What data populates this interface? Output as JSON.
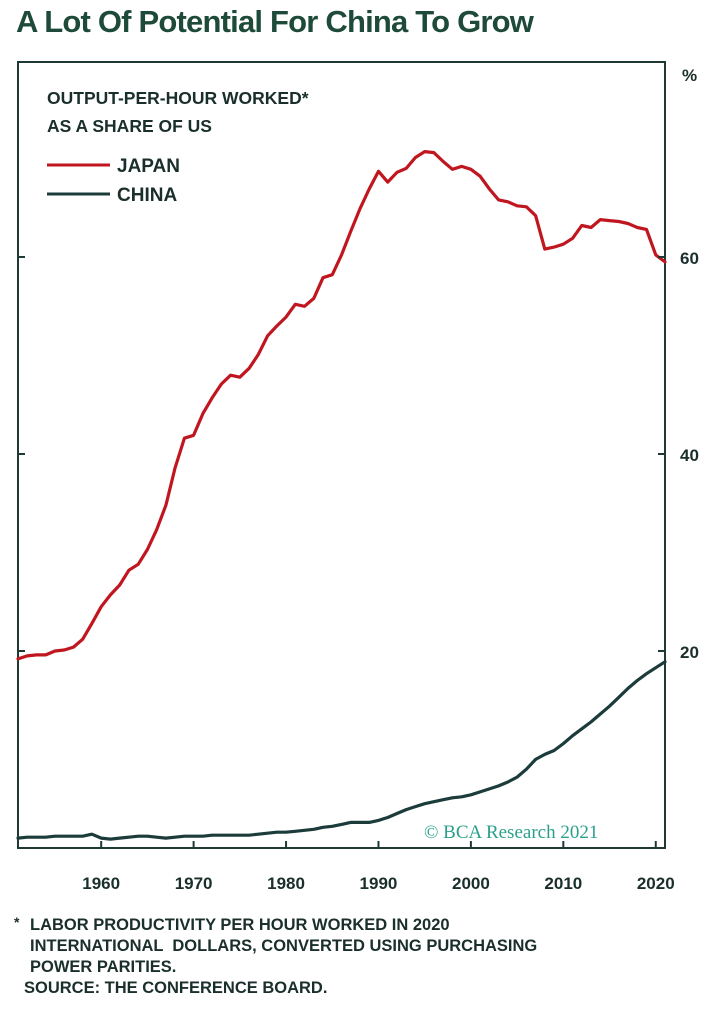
{
  "page": {
    "title": "A Lot Of Potential For China To Grow",
    "footnote": {
      "marker": "*",
      "lines": [
        "LABOR PRODUCTIVITY PER HOUR WORKED IN 2020",
        "INTERNATIONAL  DOLLARS, CONVERTED USING PURCHASING",
        "POWER PARITIES."
      ],
      "source": "SOURCE: THE CONFERENCE BOARD."
    }
  },
  "colors": {
    "title": "#1e4a3a",
    "japan": "#c0161f",
    "china": "#1b3c3a",
    "axis": "#1f3a34",
    "text": "#1a2f2b",
    "watermark": "#2aa08a"
  },
  "chart_data": {
    "type": "line",
    "title": "OUTPUT-PER-HOUR WORKED*",
    "subtitle": "AS A SHARE OF US",
    "unit_label": "%",
    "xlim": [
      1951,
      2021
    ],
    "ylim": [
      0,
      80
    ],
    "x_ticks": [
      1960,
      1970,
      1980,
      1990,
      2000,
      2010,
      2020
    ],
    "y_ticks": [
      20,
      40,
      60
    ],
    "y_axis_side": "right",
    "grid": false,
    "legend_position": "top-left",
    "watermark": "© BCA Research 2021",
    "series": [
      {
        "name": "JAPAN",
        "color": "#c0161f",
        "points": [
          [
            1951,
            19.2
          ],
          [
            1952,
            19.5
          ],
          [
            1953,
            19.6
          ],
          [
            1954,
            19.6
          ],
          [
            1955,
            20.0
          ],
          [
            1956,
            20.1
          ],
          [
            1957,
            20.4
          ],
          [
            1958,
            21.2
          ],
          [
            1959,
            22.8
          ],
          [
            1960,
            24.5
          ],
          [
            1961,
            25.7
          ],
          [
            1962,
            26.7
          ],
          [
            1963,
            28.2
          ],
          [
            1964,
            28.8
          ],
          [
            1965,
            30.3
          ],
          [
            1966,
            32.3
          ],
          [
            1967,
            34.8
          ],
          [
            1968,
            38.6
          ],
          [
            1969,
            41.6
          ],
          [
            1970,
            41.9
          ],
          [
            1971,
            44.1
          ],
          [
            1972,
            45.7
          ],
          [
            1973,
            47.1
          ],
          [
            1974,
            48.0
          ],
          [
            1975,
            47.8
          ],
          [
            1976,
            48.7
          ],
          [
            1977,
            50.1
          ],
          [
            1978,
            52.0
          ],
          [
            1979,
            53.0
          ],
          [
            1980,
            53.9
          ],
          [
            1981,
            55.2
          ],
          [
            1982,
            55.0
          ],
          [
            1983,
            55.8
          ],
          [
            1984,
            57.9
          ],
          [
            1985,
            58.2
          ],
          [
            1986,
            60.2
          ],
          [
            1987,
            62.6
          ],
          [
            1988,
            64.9
          ],
          [
            1989,
            66.9
          ],
          [
            1990,
            68.7
          ],
          [
            1991,
            67.6
          ],
          [
            1992,
            68.6
          ],
          [
            1993,
            69.0
          ],
          [
            1994,
            70.1
          ],
          [
            1995,
            70.7
          ],
          [
            1996,
            70.6
          ],
          [
            1997,
            69.7
          ],
          [
            1998,
            68.9
          ],
          [
            1999,
            69.2
          ],
          [
            2000,
            68.9
          ],
          [
            2001,
            68.2
          ],
          [
            2002,
            66.9
          ],
          [
            2003,
            65.8
          ],
          [
            2004,
            65.6
          ],
          [
            2005,
            65.2
          ],
          [
            2006,
            65.1
          ],
          [
            2007,
            64.2
          ],
          [
            2008,
            60.8
          ],
          [
            2009,
            61.0
          ],
          [
            2010,
            61.3
          ],
          [
            2011,
            61.9
          ],
          [
            2012,
            63.2
          ],
          [
            2013,
            63.0
          ],
          [
            2014,
            63.8
          ],
          [
            2015,
            63.7
          ],
          [
            2016,
            63.6
          ],
          [
            2017,
            63.4
          ],
          [
            2018,
            63.0
          ],
          [
            2019,
            62.8
          ],
          [
            2020,
            60.2
          ],
          [
            2021,
            59.5
          ]
        ]
      },
      {
        "name": "CHINA",
        "color": "#1b3c3a",
        "points": [
          [
            1951,
            1.0
          ],
          [
            1952,
            1.1
          ],
          [
            1953,
            1.1
          ],
          [
            1954,
            1.1
          ],
          [
            1955,
            1.2
          ],
          [
            1956,
            1.2
          ],
          [
            1957,
            1.2
          ],
          [
            1958,
            1.2
          ],
          [
            1959,
            1.4
          ],
          [
            1960,
            1.0
          ],
          [
            1961,
            0.9
          ],
          [
            1962,
            1.0
          ],
          [
            1963,
            1.1
          ],
          [
            1964,
            1.2
          ],
          [
            1965,
            1.2
          ],
          [
            1966,
            1.1
          ],
          [
            1967,
            1.0
          ],
          [
            1968,
            1.1
          ],
          [
            1969,
            1.2
          ],
          [
            1970,
            1.2
          ],
          [
            1971,
            1.2
          ],
          [
            1972,
            1.3
          ],
          [
            1973,
            1.3
          ],
          [
            1974,
            1.3
          ],
          [
            1975,
            1.3
          ],
          [
            1976,
            1.3
          ],
          [
            1977,
            1.4
          ],
          [
            1978,
            1.5
          ],
          [
            1979,
            1.6
          ],
          [
            1980,
            1.6
          ],
          [
            1981,
            1.7
          ],
          [
            1982,
            1.8
          ],
          [
            1983,
            1.9
          ],
          [
            1984,
            2.1
          ],
          [
            1985,
            2.2
          ],
          [
            1986,
            2.4
          ],
          [
            1987,
            2.6
          ],
          [
            1988,
            2.6
          ],
          [
            1989,
            2.6
          ],
          [
            1990,
            2.8
          ],
          [
            1991,
            3.1
          ],
          [
            1992,
            3.5
          ],
          [
            1993,
            3.9
          ],
          [
            1994,
            4.2
          ],
          [
            1995,
            4.5
          ],
          [
            1996,
            4.7
          ],
          [
            1997,
            4.9
          ],
          [
            1998,
            5.1
          ],
          [
            1999,
            5.2
          ],
          [
            2000,
            5.4
          ],
          [
            2001,
            5.7
          ],
          [
            2002,
            6.0
          ],
          [
            2003,
            6.3
          ],
          [
            2004,
            6.7
          ],
          [
            2005,
            7.2
          ],
          [
            2006,
            8.0
          ],
          [
            2007,
            9.0
          ],
          [
            2008,
            9.5
          ],
          [
            2009,
            9.9
          ],
          [
            2010,
            10.6
          ],
          [
            2011,
            11.4
          ],
          [
            2012,
            12.1
          ],
          [
            2013,
            12.8
          ],
          [
            2014,
            13.6
          ],
          [
            2015,
            14.4
          ],
          [
            2016,
            15.3
          ],
          [
            2017,
            16.2
          ],
          [
            2018,
            17.0
          ],
          [
            2019,
            17.7
          ],
          [
            2020,
            18.3
          ],
          [
            2021,
            18.9
          ]
        ]
      }
    ]
  }
}
